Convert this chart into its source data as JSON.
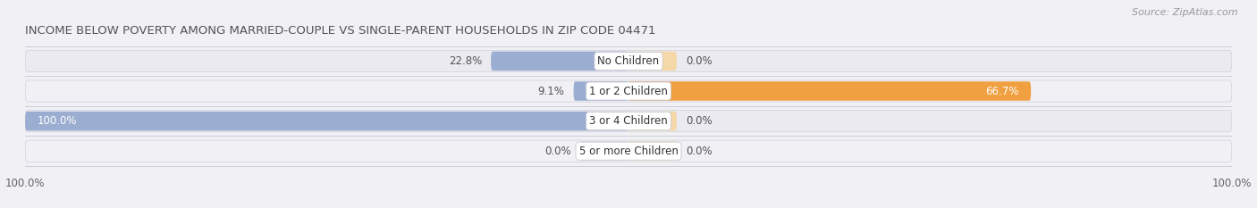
{
  "title": "INCOME BELOW POVERTY AMONG MARRIED-COUPLE VS SINGLE-PARENT HOUSEHOLDS IN ZIP CODE 04471",
  "source": "Source: ZipAtlas.com",
  "categories": [
    "No Children",
    "1 or 2 Children",
    "3 or 4 Children",
    "5 or more Children"
  ],
  "married_values": [
    22.8,
    9.1,
    100.0,
    0.0
  ],
  "single_values": [
    0.0,
    66.7,
    0.0,
    0.0
  ],
  "married_color": "#9badd0",
  "single_color": "#f0a040",
  "married_stub_color": "#c8d0e8",
  "single_stub_color": "#f5d8a8",
  "bar_bg_left_color": "#e4e6f0",
  "bar_bg_right_color": "#e4e6f0",
  "row_bg_odd": "#eaeaf0",
  "row_bg_even": "#f0f0f5",
  "bar_height": 0.72,
  "stub_size": 8.0,
  "xlim_left": -100,
  "xlim_right": 100,
  "title_fontsize": 9.5,
  "label_fontsize": 8.5,
  "tick_fontsize": 8.5,
  "source_fontsize": 8.0,
  "legend_fontsize": 9.0,
  "background_color": "#f0f0f5"
}
